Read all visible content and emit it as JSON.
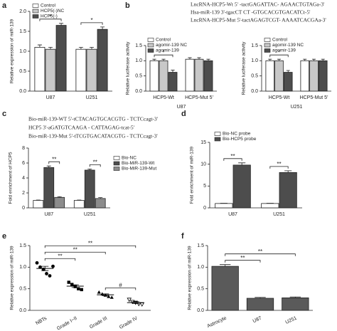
{
  "sequences_b": [
    "LncRNA-HCP5-Wt  5' -tactGAGATTAC- AGAACTGTAGa-3'",
    "Hsa-miR-139  3'-tgacCT CT -GTGCACGTGACATCt-5'",
    "LncRNA-HCP5-Mut  5'-tactAGAGTCGT- AAAATCACGAa-3'"
  ],
  "sequences_c": [
    "Bio-miR-139-WT  5'-tCTACAGTGCACGTG - TCTCcagt-3'",
    "HCP5  3'-aGATGTCAAGA - CATTAGAG-tcat-5'",
    "Bio-miR-139-Mut  5'-tTCGTGACATACGTG - TCTCcagt-3'"
  ],
  "chart_data": [
    {
      "type": "bar",
      "panel": "a",
      "ylabel": "Relative expression of miR-139",
      "categories": [
        "U87",
        "U251"
      ],
      "series": [
        {
          "name": "Control",
          "color": "#ffffff",
          "values": [
            1.1,
            1.05
          ],
          "errors": [
            0.06,
            0.05
          ]
        },
        {
          "name": "HCP5(-)NC",
          "color": "#c8c8c8",
          "values": [
            1.05,
            1.05
          ],
          "errors": [
            0.05,
            0.05
          ]
        },
        {
          "name": "HCP5(-)",
          "color": "#4d4d4d",
          "values": [
            1.65,
            1.55
          ],
          "errors": [
            0.05,
            0.06
          ]
        }
      ],
      "ylim": [
        0,
        2
      ],
      "yticks": [
        {
          "value": 0,
          "label": "0.0"
        },
        0.5,
        {
          "value": 1,
          "label": "1.0"
        },
        1.5,
        {
          "value": 2,
          "label": "2.0"
        }
      ],
      "annotations": [
        "*",
        "*"
      ]
    },
    {
      "type": "bar",
      "panel": "b",
      "ylabel": "Relative luciferase activity",
      "xlabel": "U87",
      "categories": [
        "HCP5-Wt",
        "HCP5-Mut 5'"
      ],
      "series": [
        {
          "name": "Control",
          "color": "#ffffff",
          "values": [
            1.0,
            1.05
          ],
          "errors": [
            0.05,
            0.05
          ]
        },
        {
          "name": "agomir-139 NC",
          "color": "#c8c8c8",
          "values": [
            1.0,
            1.05
          ],
          "errors": [
            0.05,
            0.05
          ]
        },
        {
          "name": "agomir-139",
          "color": "#4d4d4d",
          "values": [
            0.62,
            1.0
          ],
          "errors": [
            0.07,
            0.05
          ]
        }
      ],
      "ylim": [
        0,
        1.5
      ],
      "yticks": [
        {
          "value": 0,
          "label": "0.0"
        },
        0.5,
        {
          "value": 1,
          "label": "1.0"
        },
        1.5
      ],
      "annotations": [
        "*"
      ]
    },
    {
      "type": "bar",
      "ylabel": "Relative luciferase activity",
      "xlabel": "U251",
      "categories": [
        "HCP5-Wt",
        "HCP5-Mut 5'"
      ],
      "series": [
        {
          "name": "Control",
          "color": "#ffffff",
          "values": [
            1.0,
            1.0
          ],
          "errors": [
            0.05,
            0.05
          ]
        },
        {
          "name": "agomir-139 NC",
          "color": "#c8c8c8",
          "values": [
            1.0,
            1.0
          ],
          "errors": [
            0.05,
            0.05
          ]
        },
        {
          "name": "agomir-139",
          "color": "#4d4d4d",
          "values": [
            0.62,
            1.0
          ],
          "errors": [
            0.06,
            0.05
          ]
        }
      ],
      "ylim": [
        0,
        1.5
      ],
      "yticks": [
        {
          "value": 0,
          "label": "0.0"
        },
        0.5,
        {
          "value": 1,
          "label": "1.0"
        },
        1.5
      ],
      "annotations": [
        "*"
      ]
    },
    {
      "type": "bar",
      "panel": "c",
      "ylabel": "Fold enrichment of HCP5",
      "categories": [
        "U87",
        "U251"
      ],
      "series": [
        {
          "name": "Bio-NC",
          "color": "#ffffff",
          "values": [
            1,
            1
          ],
          "errors": [
            0.05,
            0.05
          ]
        },
        {
          "name": "Bio-MiR-139-Wt",
          "color": "#4d4d4d",
          "values": [
            5.4,
            5.05
          ],
          "errors": [
            0.2,
            0.15
          ]
        },
        {
          "name": "Bio-MiR-139-Mut",
          "color": "#8c8c8c",
          "values": [
            1.4,
            1.25
          ],
          "errors": [
            0.1,
            0.12
          ]
        }
      ],
      "ylim": [
        0,
        8
      ],
      "yticks": [
        0,
        2,
        4,
        6,
        8
      ],
      "annotations": [
        "**",
        "**"
      ]
    },
    {
      "type": "bar",
      "panel": "d",
      "ylabel": "Fold enrichment of miR-139",
      "categories": [
        "U87",
        "U251"
      ],
      "series": [
        {
          "name": "Bio-NC probe",
          "color": "#ffffff",
          "values": [
            1,
            1
          ],
          "errors": [
            0.05,
            0.05
          ]
        },
        {
          "name": "Bio-HCP5 probe",
          "color": "#4d4d4d",
          "values": [
            9.8,
            8.1
          ],
          "errors": [
            0.5,
            0.4
          ]
        }
      ],
      "ylim": [
        0,
        15
      ],
      "yticks": [
        0,
        5,
        10,
        15
      ],
      "annotations": [
        "**",
        "**"
      ]
    },
    {
      "type": "strip",
      "panel": "e",
      "ylabel": "Relative expression of miR-139",
      "categories": [
        "NBTs",
        "Grade I~II",
        "Grade III",
        "Grade IV"
      ],
      "color": "#000000",
      "points": [
        [
          1.1,
          1.0,
          0.95,
          0.85,
          0.8,
          1.02
        ],
        [
          0.65,
          0.6,
          0.55,
          0.5,
          0.48
        ],
        [
          0.42,
          0.38,
          0.35,
          0.32,
          0.3
        ],
        [
          0.25,
          0.2,
          0.18,
          0.15,
          0.14
        ]
      ],
      "values": [
        0.97,
        0.56,
        0.36,
        0.18
      ],
      "errors": [
        0.05,
        0.03,
        0.02,
        0.02
      ],
      "ylim": [
        0,
        1.5
      ],
      "yticks": [
        {
          "value": 0,
          "label": "0.0"
        },
        0.5,
        {
          "value": 1,
          "label": "1.0"
        },
        1.5
      ],
      "annotations": [
        "**",
        "**",
        "**",
        "#"
      ]
    },
    {
      "type": "bar",
      "panel": "f",
      "ylabel": "Relative expression of miR-139",
      "categories": [
        "Astrocyte",
        "U87",
        "U251"
      ],
      "series": [
        {
          "name": null,
          "color": "#5a5a5a",
          "values": [
            1.02,
            0.28,
            0.29
          ],
          "errors": [
            0.04,
            0.02,
            0.02
          ]
        }
      ],
      "ylim": [
        0,
        1.5
      ],
      "yticks": [
        {
          "value": 0,
          "label": "0.0"
        },
        0.5,
        {
          "value": 1,
          "label": "1.0"
        },
        1.5
      ],
      "annotations": [
        "**",
        "**"
      ]
    }
  ]
}
